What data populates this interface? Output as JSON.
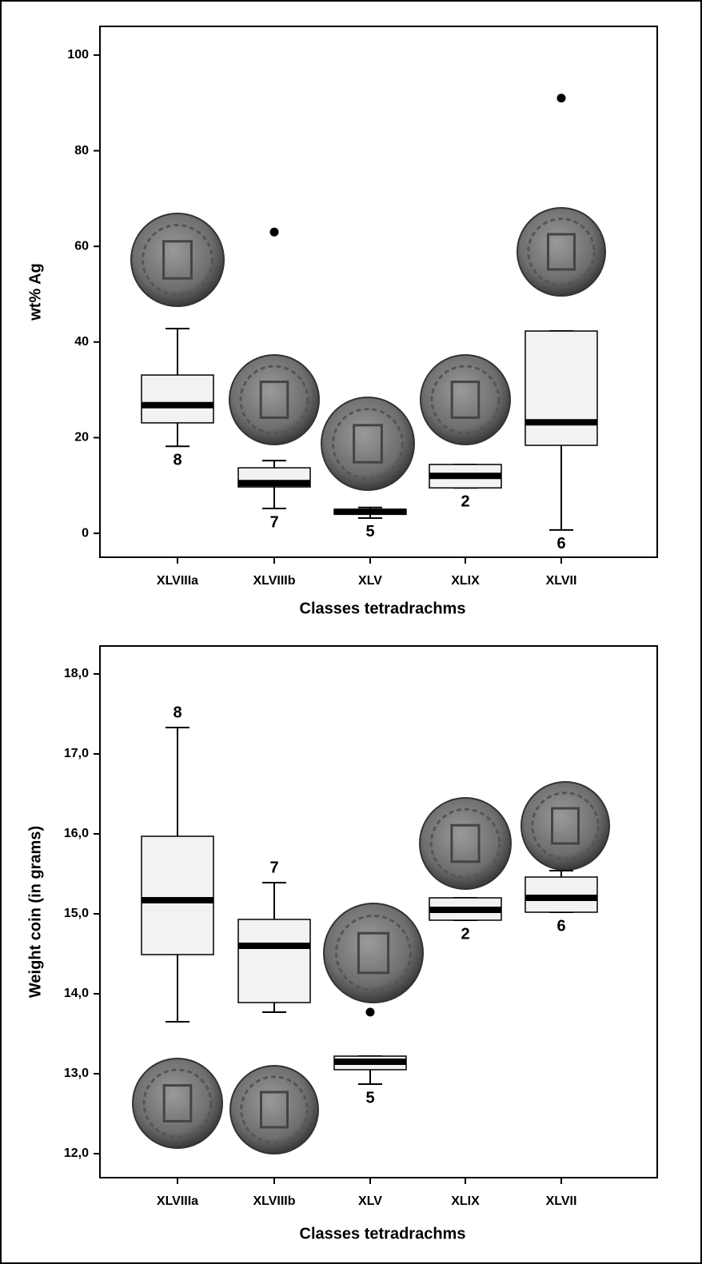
{
  "chart_data": [
    {
      "type": "box",
      "y_label": "wt% Ag",
      "x_label": "Classes tetradrachms",
      "categories": [
        "XLVIIIa",
        "XLVIIIb",
        "XLV",
        "XLIX",
        "XLVII"
      ],
      "ylim": [
        -5,
        106
      ],
      "yticks": [
        0,
        20,
        40,
        60,
        80,
        100
      ],
      "color": "#f2f2f2",
      "median_color": "#000000",
      "boxes": [
        {
          "low": 18.2,
          "q1": 23.1,
          "median": 26.8,
          "q3": 33.1,
          "high": 42.8,
          "outliers": [],
          "n": 8
        },
        {
          "low": 5.2,
          "q1": 9.7,
          "median": 10.5,
          "q3": 13.7,
          "high": 15.2,
          "outliers": [
            63
          ],
          "n": 7
        },
        {
          "low": 3.2,
          "q1": 4.0,
          "median": 4.5,
          "q3": 5.0,
          "high": 5.4,
          "outliers": [],
          "n": 5
        },
        {
          "low": 9.5,
          "q1": 9.5,
          "median": 12.0,
          "q3": 14.4,
          "high": 14.4,
          "outliers": [],
          "n": 2
        },
        {
          "low": 0.7,
          "q1": 18.4,
          "median": 23.2,
          "q3": 42.3,
          "high": 42.3,
          "outliers": [
            91
          ],
          "n": 6
        }
      ]
    },
    {
      "type": "box",
      "y_label": "Weight coin (in grams)",
      "x_label": "Classes tetradrachms",
      "categories": [
        "XLVIIIa",
        "XLVIIIb",
        "XLV",
        "XLIX",
        "XLVII"
      ],
      "ylim": [
        11.7,
        18.35
      ],
      "yticks": [
        {
          "value": 12,
          "label": "12,0"
        },
        {
          "value": 13,
          "label": "13,0"
        },
        {
          "value": 14,
          "label": "14,0"
        },
        {
          "value": 15,
          "label": "15,0"
        },
        {
          "value": 16,
          "label": "16,0"
        },
        {
          "value": 17,
          "label": "17,0"
        },
        {
          "value": 18,
          "label": "18,0"
        }
      ],
      "color": "#f2f2f2",
      "median_color": "#000000",
      "boxes": [
        {
          "low": 13.65,
          "q1": 14.49,
          "median": 15.17,
          "q3": 15.97,
          "high": 17.33,
          "outliers": [],
          "n": 8
        },
        {
          "low": 13.77,
          "q1": 13.89,
          "median": 14.6,
          "q3": 14.93,
          "high": 15.39,
          "outliers": [],
          "n": 7
        },
        {
          "low": 12.87,
          "q1": 13.05,
          "median": 13.15,
          "q3": 13.22,
          "high": 13.22,
          "outliers": [
            13.77
          ],
          "n": 5
        },
        {
          "low": 14.92,
          "q1": 14.92,
          "median": 15.05,
          "q3": 15.2,
          "high": 15.2,
          "outliers": [],
          "n": 2
        },
        {
          "low": 15.02,
          "q1": 15.02,
          "median": 15.2,
          "q3": 15.46,
          "high": 15.54,
          "outliers": [],
          "n": 6
        }
      ]
    }
  ]
}
